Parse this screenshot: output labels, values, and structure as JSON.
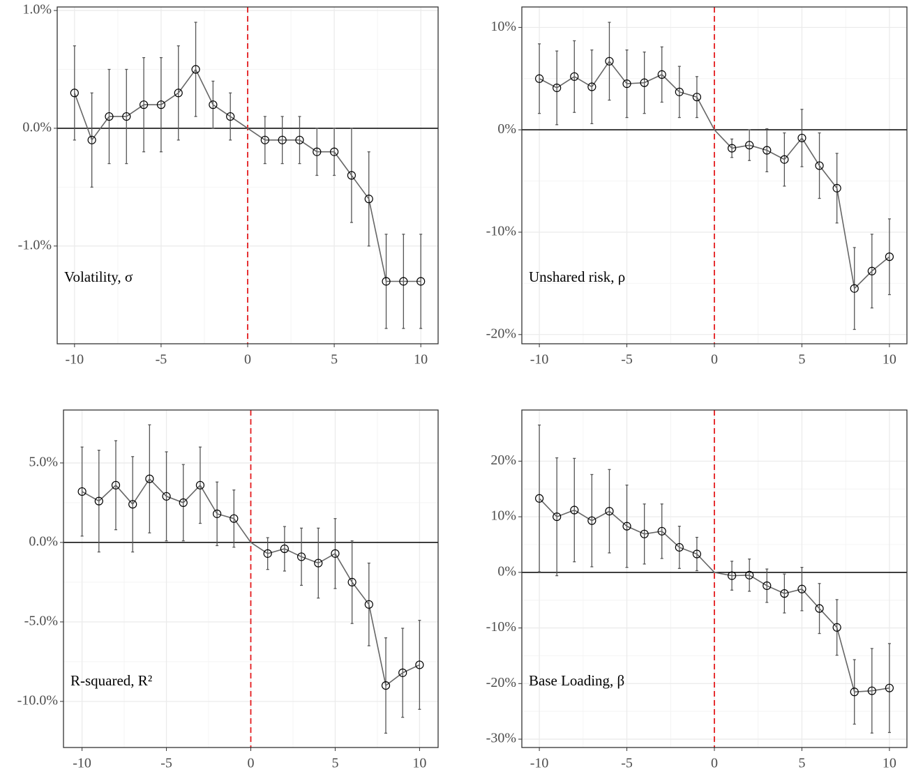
{
  "chart_data": [
    {
      "type": "line",
      "label": "Volatility, σ",
      "x": [
        -10,
        -9,
        -8,
        -7,
        -6,
        -5,
        -4,
        -3,
        -2,
        -1,
        0,
        1,
        2,
        3,
        4,
        5,
        6,
        7,
        8,
        9,
        10
      ],
      "values": [
        0.3,
        -0.1,
        0.1,
        0.1,
        0.2,
        0.2,
        0.3,
        0.5,
        0.2,
        0.1,
        0,
        -0.1,
        -0.1,
        -0.1,
        -0.2,
        -0.2,
        -0.4,
        -0.6,
        -1.3,
        -1.3,
        -1.3
      ],
      "errors": [
        0.4,
        0.4,
        0.4,
        0.4,
        0.4,
        0.4,
        0.4,
        0.4,
        0.2,
        0.2,
        null,
        0.2,
        0.2,
        0.2,
        0.2,
        0.2,
        0.4,
        0.4,
        0.4,
        0.4,
        0.4
      ],
      "color": "#666666",
      "error_color": "#555555",
      "vline": 0,
      "vline_color": "#e41a1c",
      "hline": 0,
      "xlim": [
        -11,
        11
      ],
      "ylim": [
        -1.83,
        1.03
      ],
      "xticks": [
        -10,
        -5,
        0,
        5,
        10
      ],
      "yticks": [
        {
          "value": 1,
          "label": "1.0%"
        },
        {
          "value": 0,
          "label": "0.0%"
        },
        {
          "value": -1,
          "label": "-1.0%"
        }
      ],
      "grid": true
    },
    {
      "type": "line",
      "label": "Unshared risk, ρ",
      "x": [
        -10,
        -9,
        -8,
        -7,
        -6,
        -5,
        -4,
        -3,
        -2,
        -1,
        0,
        1,
        2,
        3,
        4,
        5,
        6,
        7,
        8,
        9,
        10
      ],
      "values": [
        5.0,
        4.1,
        5.2,
        4.2,
        6.7,
        4.5,
        4.6,
        5.4,
        3.7,
        3.2,
        0,
        -1.8,
        -1.5,
        -2.0,
        -2.9,
        -0.8,
        -3.5,
        -5.7,
        -15.5,
        -13.8,
        -12.4
      ],
      "errors": [
        3.4,
        3.6,
        3.5,
        3.6,
        3.8,
        3.3,
        3.0,
        2.7,
        2.5,
        2.0,
        null,
        0.9,
        1.5,
        2.1,
        2.6,
        2.8,
        3.2,
        3.4,
        4.0,
        3.6,
        3.7
      ],
      "color": "#666666",
      "error_color": "#555555",
      "vline": 0,
      "vline_color": "#e41a1c",
      "hline": 0,
      "xlim": [
        -11,
        11
      ],
      "ylim": [
        -20.9,
        12.0
      ],
      "xticks": [
        -10,
        -5,
        0,
        5,
        10
      ],
      "yticks": [
        {
          "value": 10,
          "label": "10%"
        },
        {
          "value": 0,
          "label": "0%"
        },
        {
          "value": -10,
          "label": "-10%"
        },
        {
          "value": -20,
          "label": "-20%"
        }
      ],
      "grid": true
    },
    {
      "type": "line",
      "label": "R-squared, R²",
      "x": [
        -10,
        -9,
        -8,
        -7,
        -6,
        -5,
        -4,
        -3,
        -2,
        -1,
        0,
        1,
        2,
        3,
        4,
        5,
        6,
        7,
        8,
        9,
        10
      ],
      "values": [
        3.2,
        2.6,
        3.6,
        2.4,
        4.0,
        2.9,
        2.5,
        3.6,
        1.8,
        1.5,
        0,
        -0.7,
        -0.4,
        -0.9,
        -1.3,
        -0.7,
        -2.5,
        -3.9,
        -9.0,
        -8.2,
        -7.7
      ],
      "errors": [
        2.8,
        3.2,
        2.8,
        3.0,
        3.4,
        2.8,
        2.4,
        2.4,
        2.0,
        1.8,
        null,
        1.0,
        1.4,
        1.8,
        2.2,
        2.2,
        2.6,
        2.6,
        3.0,
        2.8,
        2.8
      ],
      "color": "#666666",
      "error_color": "#555555",
      "vline": 0,
      "vline_color": "#e41a1c",
      "hline": 0,
      "xlim": [
        -11.1,
        11.1
      ],
      "ylim": [
        -12.9,
        8.33
      ],
      "xticks": [
        -10,
        -5,
        0,
        5,
        10
      ],
      "yticks": [
        {
          "value": 5,
          "label": "5.0%"
        },
        {
          "value": 0,
          "label": "0.0%"
        },
        {
          "value": -5,
          "label": "-5.0%"
        },
        {
          "value": -10,
          "label": "-10.0%"
        }
      ],
      "grid": true
    },
    {
      "type": "line",
      "label": "Base Loading, β",
      "x": [
        -10,
        -9,
        -8,
        -7,
        -6,
        -5,
        -4,
        -3,
        -2,
        -1,
        0,
        1,
        2,
        3,
        4,
        5,
        6,
        7,
        8,
        9,
        10
      ],
      "values": [
        13.3,
        10.0,
        11.2,
        9.3,
        11.0,
        8.3,
        6.9,
        7.4,
        4.5,
        3.3,
        0,
        -0.6,
        -0.5,
        -2.4,
        -3.8,
        -3.0,
        -6.5,
        -9.9,
        -21.5,
        -21.3,
        -20.8
      ],
      "errors": [
        13.2,
        10.6,
        9.3,
        8.3,
        7.5,
        7.4,
        5.4,
        4.9,
        3.8,
        3.0,
        null,
        2.6,
        2.9,
        3.0,
        3.5,
        3.9,
        4.5,
        5.0,
        5.8,
        7.6,
        8.0
      ],
      "color": "#666666",
      "error_color": "#555555",
      "vline": 0,
      "vline_color": "#e41a1c",
      "hline": 0,
      "xlim": [
        -11,
        11
      ],
      "ylim": [
        -31.5,
        29.2
      ],
      "xticks": [
        -10,
        -5,
        0,
        5,
        10
      ],
      "yticks": [
        {
          "value": 20,
          "label": "20%"
        },
        {
          "value": 10,
          "label": "10%"
        },
        {
          "value": 0,
          "label": "0%"
        },
        {
          "value": -10,
          "label": "-10%"
        },
        {
          "value": -20,
          "label": "-20%"
        },
        {
          "value": -30,
          "label": "-30%"
        }
      ],
      "grid": true
    }
  ]
}
